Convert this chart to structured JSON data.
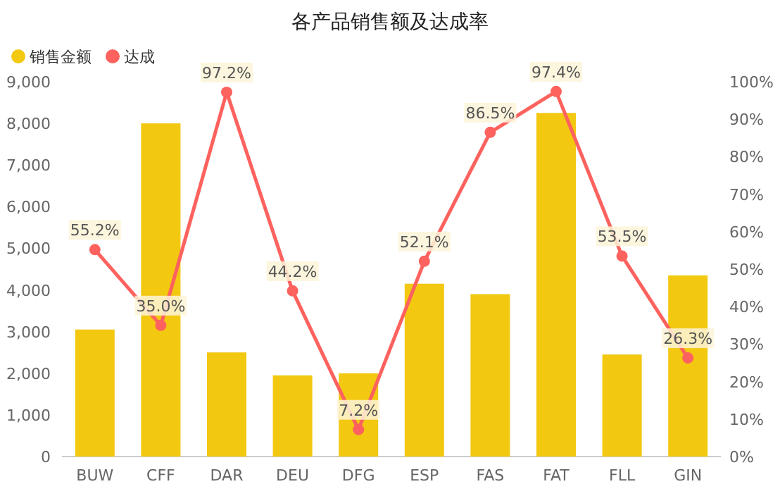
{
  "chart_data": {
    "type": "bar",
    "title": "各产品销售额及达成率",
    "categories": [
      "BUW",
      "CFF",
      "DAR",
      "DEU",
      "DFG",
      "ESP",
      "FAS",
      "FAT",
      "FLL",
      "GIN"
    ],
    "series": [
      {
        "name": "销售金额",
        "color": "#f2c811",
        "values": [
          3050,
          8000,
          2500,
          1950,
          2000,
          4150,
          3900,
          8250,
          2450,
          4350
        ]
      },
      {
        "name": "达成",
        "type": "line",
        "axis": "y2",
        "color": "#fd625e",
        "marker": "circle",
        "values": [
          55.2,
          35.0,
          97.2,
          44.2,
          7.2,
          52.1,
          86.5,
          97.4,
          53.5,
          26.3
        ],
        "value_labels": [
          "55.2%",
          "35.0%",
          "97.2%",
          "44.2%",
          "7.2%",
          "52.1%",
          "86.5%",
          "97.4%",
          "53.5%",
          "26.3%"
        ]
      }
    ],
    "ylim": [
      0,
      9000
    ],
    "yticks": [
      0,
      {
        "value": 1000,
        "label": "1,000"
      },
      {
        "value": 2000,
        "label": "2,000"
      },
      {
        "value": 3000,
        "label": "3,000"
      },
      {
        "value": 4000,
        "label": "4,000"
      },
      {
        "value": 5000,
        "label": "5,000"
      },
      {
        "value": 6000,
        "label": "6,000"
      },
      {
        "value": 7000,
        "label": "7,000"
      },
      {
        "value": 8000,
        "label": "8,000"
      },
      {
        "value": 9000,
        "label": "9,000"
      }
    ],
    "y2lim": [
      0,
      100
    ],
    "y2ticks": [
      {
        "value": 0,
        "label": "0%"
      },
      {
        "value": 10,
        "label": "10%"
      },
      {
        "value": 20,
        "label": "20%"
      },
      {
        "value": 30,
        "label": "30%"
      },
      {
        "value": 40,
        "label": "40%"
      },
      {
        "value": 50,
        "label": "50%"
      },
      {
        "value": 60,
        "label": "60%"
      },
      {
        "value": 70,
        "label": "70%"
      },
      {
        "value": 80,
        "label": "80%"
      },
      {
        "value": 90,
        "label": "90%"
      },
      {
        "value": 100,
        "label": "100%"
      }
    ],
    "legend": "top left",
    "grid": false
  }
}
